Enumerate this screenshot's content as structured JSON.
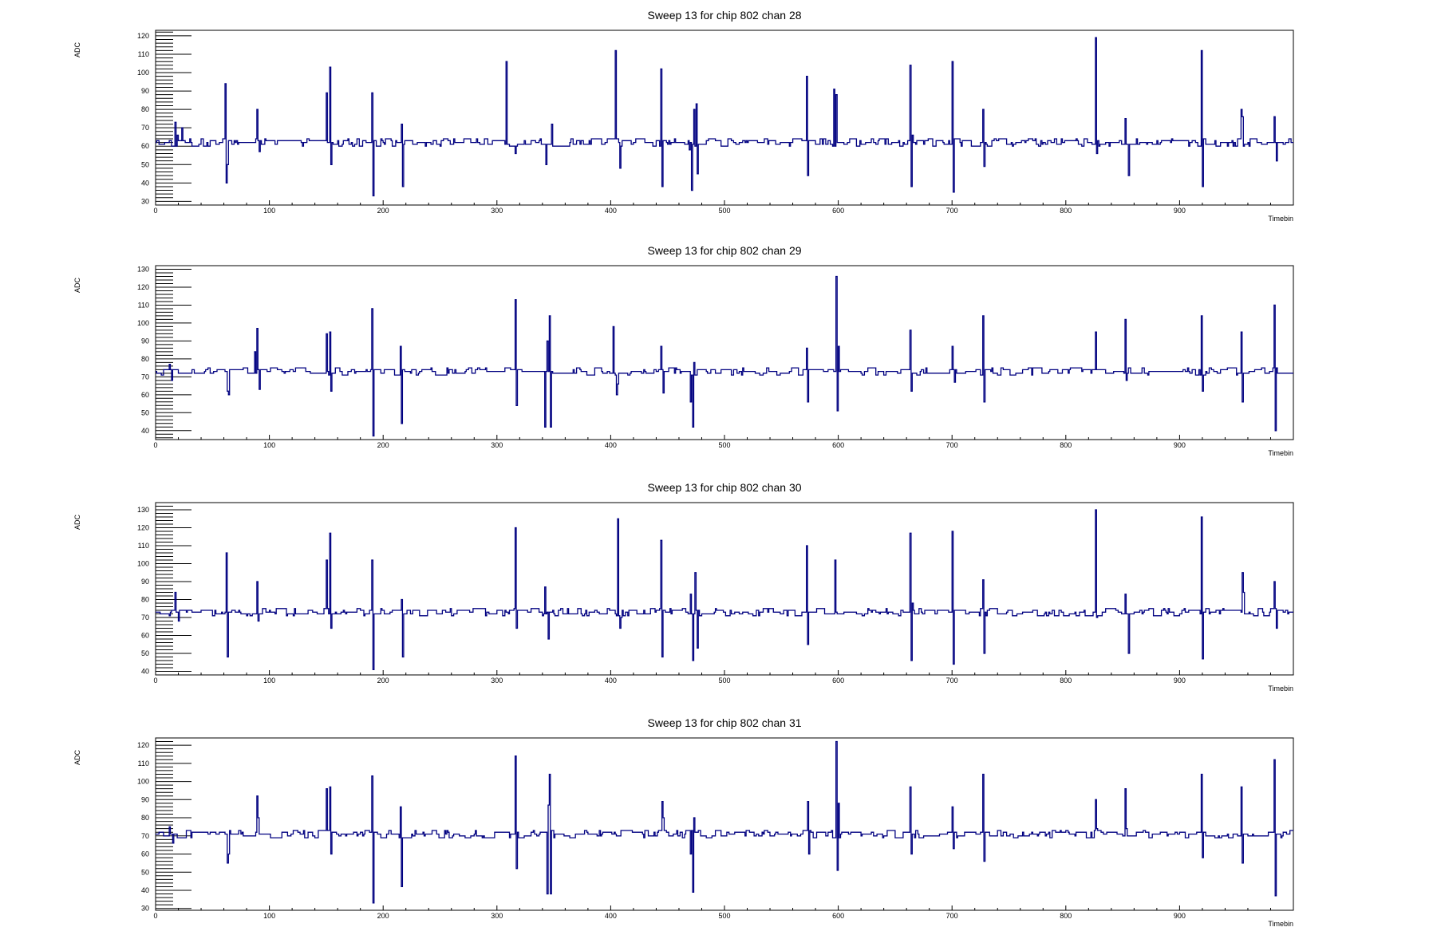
{
  "colors": {
    "trace": "#000080",
    "frame": "#000000"
  },
  "chart_data": [
    {
      "type": "line",
      "title": "Sweep 13 for chip 802 chan 28",
      "xlabel": "Timebin",
      "ylabel": "ADC",
      "xlim": [
        0,
        1000
      ],
      "ylim": [
        28,
        123
      ],
      "x_ticks": [
        0,
        100,
        200,
        300,
        400,
        500,
        600,
        700,
        800,
        900
      ],
      "y_ticks": [
        30,
        40,
        50,
        60,
        70,
        80,
        90,
        100,
        110,
        120
      ],
      "baseline": 62,
      "noise": 2,
      "series": [
        {
          "x": [
            17,
            19,
            23,
            61,
            62,
            63,
            89,
            91,
            150,
            153,
            154,
            190,
            191,
            216,
            217,
            308,
            316,
            317,
            343,
            348,
            404,
            408,
            409,
            444,
            445,
            469,
            471,
            473,
            475,
            476,
            572,
            573,
            596,
            598,
            663,
            664,
            665,
            700,
            701,
            727,
            728,
            826,
            827,
            852,
            855,
            919,
            920,
            954,
            955,
            983,
            985
          ],
          "y": [
            73,
            66,
            70,
            94,
            40,
            50,
            80,
            57,
            89,
            103,
            50,
            89,
            33,
            72,
            38,
            106,
            56,
            60,
            50,
            72,
            112,
            48,
            60,
            102,
            38,
            58,
            36,
            80,
            83,
            45,
            98,
            44,
            91,
            88,
            104,
            38,
            66,
            106,
            35,
            80,
            49,
            119,
            56,
            75,
            44,
            112,
            38,
            80,
            76,
            76,
            52
          ]
        }
      ]
    },
    {
      "type": "line",
      "title": "Sweep 13 for chip 802 chan 29",
      "xlabel": "Timebin",
      "ylabel": "ADC",
      "xlim": [
        0,
        1000
      ],
      "ylim": [
        35,
        132
      ],
      "x_ticks": [
        0,
        100,
        200,
        300,
        400,
        500,
        600,
        700,
        800,
        900
      ],
      "y_ticks": [
        40,
        50,
        60,
        70,
        80,
        90,
        100,
        110,
        120,
        130
      ],
      "baseline": 73,
      "noise": 2,
      "series": [
        {
          "x": [
            12,
            14,
            63,
            64,
            87,
            89,
            91,
            150,
            153,
            154,
            190,
            191,
            215,
            216,
            316,
            317,
            342,
            344,
            346,
            347,
            402,
            405,
            406,
            444,
            446,
            470,
            472,
            473,
            572,
            573,
            598,
            599,
            600,
            663,
            664,
            700,
            702,
            727,
            728,
            826,
            827,
            852,
            853,
            919,
            920,
            954,
            955,
            983,
            984
          ],
          "y": [
            77,
            68,
            62,
            60,
            84,
            97,
            63,
            94,
            95,
            62,
            108,
            37,
            87,
            44,
            113,
            54,
            42,
            90,
            104,
            42,
            98,
            60,
            66,
            87,
            61,
            56,
            42,
            78,
            86,
            56,
            126,
            51,
            87,
            96,
            62,
            87,
            67,
            104,
            56,
            95,
            74,
            102,
            68,
            104,
            62,
            95,
            56,
            110,
            40
          ]
        }
      ]
    },
    {
      "type": "line",
      "title": "Sweep 13 for chip 802 chan 30",
      "xlabel": "Timebin",
      "ylabel": "ADC",
      "xlim": [
        0,
        1000
      ],
      "ylim": [
        38,
        134
      ],
      "x_ticks": [
        0,
        100,
        200,
        300,
        400,
        500,
        600,
        700,
        800,
        900
      ],
      "y_ticks": [
        40,
        50,
        60,
        70,
        80,
        90,
        100,
        110,
        120,
        130
      ],
      "baseline": 73,
      "noise": 2,
      "series": [
        {
          "x": [
            17,
            20,
            62,
            63,
            89,
            90,
            150,
            153,
            154,
            190,
            191,
            216,
            217,
            316,
            317,
            342,
            345,
            406,
            408,
            409,
            444,
            445,
            470,
            472,
            474,
            476,
            572,
            573,
            597,
            598,
            663,
            664,
            665,
            700,
            701,
            727,
            728,
            826,
            827,
            852,
            855,
            919,
            920,
            955,
            956,
            983,
            985
          ],
          "y": [
            84,
            68,
            106,
            48,
            90,
            68,
            102,
            117,
            64,
            102,
            41,
            80,
            48,
            120,
            64,
            87,
            58,
            125,
            64,
            70,
            113,
            48,
            83,
            46,
            95,
            53,
            110,
            55,
            102,
            73,
            117,
            46,
            78,
            118,
            44,
            91,
            50,
            130,
            70,
            83,
            50,
            126,
            47,
            95,
            84,
            90,
            64
          ]
        }
      ]
    },
    {
      "type": "line",
      "title": "Sweep 13 for chip 802 chan 31",
      "xlabel": "Timebin",
      "ylabel": "ADC",
      "xlim": [
        0,
        1000
      ],
      "ylim": [
        29,
        124
      ],
      "x_ticks": [
        0,
        100,
        200,
        300,
        400,
        500,
        600,
        700,
        800,
        900
      ],
      "y_ticks": [
        30,
        40,
        50,
        60,
        70,
        80,
        90,
        100,
        110,
        120
      ],
      "baseline": 71,
      "noise": 2,
      "series": [
        {
          "x": [
            12,
            15,
            63,
            64,
            89,
            90,
            150,
            153,
            154,
            190,
            191,
            215,
            216,
            316,
            317,
            344,
            345,
            346,
            347,
            445,
            446,
            470,
            472,
            473,
            573,
            574,
            598,
            599,
            600,
            663,
            664,
            700,
            701,
            727,
            728,
            826,
            827,
            852,
            853,
            919,
            920,
            954,
            955,
            983,
            984
          ],
          "y": [
            75,
            66,
            55,
            60,
            92,
            80,
            96,
            97,
            60,
            103,
            33,
            86,
            42,
            114,
            52,
            38,
            87,
            104,
            38,
            89,
            80,
            60,
            39,
            80,
            89,
            60,
            122,
            51,
            88,
            97,
            60,
            86,
            63,
            104,
            56,
            90,
            74,
            96,
            74,
            104,
            58,
            97,
            55,
            112,
            37
          ]
        }
      ]
    }
  ]
}
